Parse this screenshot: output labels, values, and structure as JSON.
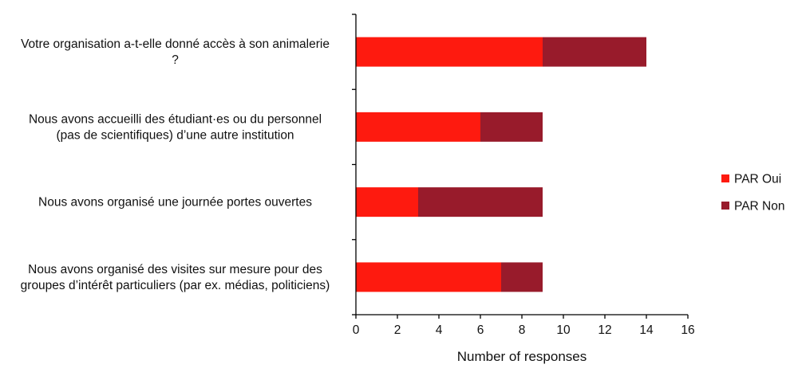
{
  "chart_data": {
    "type": "bar",
    "orientation": "horizontal",
    "stacked": true,
    "categories": [
      [
        "Votre organisation a-t-elle donné accès à son animalerie",
        "?"
      ],
      [
        "Nous avons accueilli des étudiant·es ou du personnel",
        "(pas de scientifiques) d’une autre institution"
      ],
      [
        "Nous avons organisé une journée portes ouvertes"
      ],
      [
        "Nous avons organisé des visites sur mesure pour des",
        "groupes d’intérêt particuliers (par ex. médias, politiciens)"
      ]
    ],
    "series": [
      {
        "name": "PAR Oui",
        "color": "#fe1a0f",
        "values": [
          9,
          6,
          3,
          7
        ]
      },
      {
        "name": "PAR Non",
        "color": "#981b2b",
        "values": [
          5,
          3,
          6,
          2
        ]
      }
    ],
    "xlabel": "Number of responses",
    "xlim": [
      0,
      16
    ],
    "xticks": [
      0,
      2,
      4,
      6,
      8,
      10,
      12,
      14,
      16
    ],
    "grid": false,
    "legend_position": "right"
  }
}
